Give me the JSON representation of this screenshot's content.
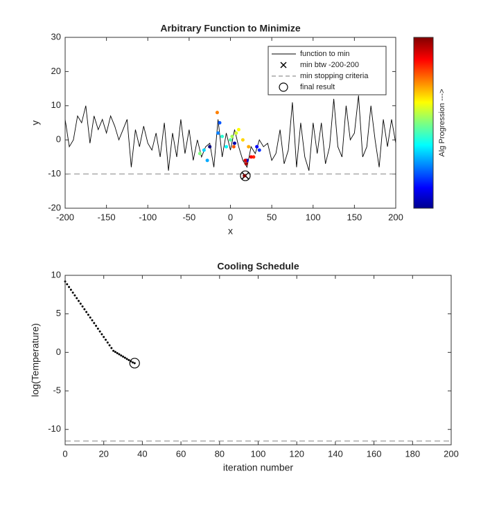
{
  "chart_data": [
    {
      "type": "line",
      "title": "Arbitrary Function to Minimize",
      "xlabel": "x",
      "ylabel": "y",
      "xlim": [
        -200,
        200
      ],
      "ylim": [
        -20,
        30
      ],
      "xticks": [
        -200,
        -150,
        -100,
        -50,
        0,
        50,
        100,
        150,
        200
      ],
      "yticks": [
        -20,
        -10,
        0,
        10,
        20,
        30
      ],
      "legend": "upper right",
      "series": [
        {
          "name": "function to min",
          "color": "#000000",
          "style": "solid",
          "x": [
            -200,
            -195,
            -190,
            -185,
            -180,
            -175,
            -170,
            -165,
            -160,
            -155,
            -150,
            -145,
            -140,
            -135,
            -130,
            -125,
            -120,
            -115,
            -110,
            -105,
            -100,
            -95,
            -90,
            -85,
            -80,
            -75,
            -70,
            -65,
            -60,
            -55,
            -50,
            -45,
            -40,
            -35,
            -30,
            -25,
            -20,
            -15,
            -10,
            -5,
            0,
            5,
            10,
            15,
            20,
            25,
            30,
            35,
            40,
            45,
            50,
            55,
            60,
            65,
            70,
            75,
            80,
            85,
            90,
            95,
            100,
            105,
            110,
            115,
            120,
            125,
            130,
            135,
            140,
            145,
            150,
            155,
            160,
            165,
            170,
            175,
            180,
            185,
            190,
            195,
            200
          ],
          "values": [
            6,
            -2,
            0,
            7,
            5,
            10,
            -1,
            7,
            3,
            6,
            2,
            7,
            4,
            0,
            3,
            6,
            -8,
            3,
            -2,
            4,
            -1,
            -3,
            2,
            -5,
            5,
            -9,
            2,
            -5,
            6,
            -4,
            3,
            -6,
            0,
            -5,
            -2,
            -1,
            -8,
            6,
            -5,
            2,
            -3,
            3,
            -2,
            -6,
            -8,
            -2,
            -4,
            0,
            -2,
            -1,
            -6,
            -4,
            3,
            -7,
            -3,
            11,
            -8,
            5,
            -5,
            -9,
            5,
            -4,
            5,
            -7,
            -2,
            12,
            -2,
            -5,
            10,
            0,
            2,
            13,
            -5,
            -2,
            10,
            0,
            -8,
            6,
            -2,
            6,
            -1
          ]
        },
        {
          "name": "min btw -200-200",
          "color": "#000000",
          "marker": "x",
          "x": [
            18
          ],
          "values": [
            -10.5
          ]
        },
        {
          "name": "min stopping criteria",
          "color": "#777777",
          "style": "dashed",
          "x": [
            -200,
            200
          ],
          "values": [
            -10,
            -10
          ]
        },
        {
          "name": "final result",
          "color": "#000000",
          "marker": "o",
          "x": [
            18
          ],
          "values": [
            -10.5
          ]
        }
      ],
      "progression": {
        "colormap": "jet",
        "x": [
          -25,
          5,
          20,
          32,
          35,
          -13,
          -15,
          -28,
          -32,
          -5,
          -10,
          0,
          -37,
          2,
          7,
          10,
          15,
          22,
          -16,
          4,
          28,
          25,
          18,
          19,
          17
        ],
        "values": [
          -2,
          -1,
          -6,
          -2,
          -3,
          5,
          2,
          -6,
          -3,
          -2,
          1,
          0,
          -4,
          1,
          2,
          3,
          0,
          -2,
          8,
          -2,
          -5,
          -5,
          -6,
          -7,
          -10.5
        ]
      },
      "colorbar_label": "Alg Progression --->"
    },
    {
      "type": "line",
      "title": "Cooling Schedule",
      "xlabel": "iteration number",
      "ylabel": "log(Temperature)",
      "xlim": [
        0,
        200
      ],
      "ylim": [
        -12,
        10
      ],
      "xticks": [
        0,
        20,
        40,
        60,
        80,
        100,
        120,
        140,
        160,
        180,
        200
      ],
      "yticks": [
        -10,
        -5,
        0,
        5,
        10
      ],
      "series": [
        {
          "color": "#000000",
          "marker": "dot",
          "x": [
            0,
            1,
            2,
            3,
            4,
            5,
            6,
            7,
            8,
            9,
            10,
            11,
            12,
            13,
            14,
            15,
            16,
            17,
            18,
            19,
            20,
            21,
            22,
            23,
            24,
            25,
            26,
            27,
            28,
            29,
            30,
            31,
            32,
            33,
            34,
            35,
            36
          ],
          "values": [
            9.2,
            8.84,
            8.48,
            8.12,
            7.76,
            7.4,
            7.04,
            6.68,
            6.32,
            5.96,
            5.6,
            5.24,
            4.88,
            4.52,
            4.16,
            3.8,
            3.44,
            3.08,
            2.72,
            2.36,
            2.0,
            1.64,
            1.28,
            0.92,
            0.56,
            0.2,
            0.05,
            -0.1,
            -0.25,
            -0.4,
            -0.55,
            -0.7,
            -0.85,
            -1.0,
            -1.15,
            -1.3,
            -1.4
          ]
        },
        {
          "color": "#777777",
          "style": "dashed",
          "x": [
            0,
            200
          ],
          "values": [
            -11.5,
            -11.5
          ]
        },
        {
          "color": "#000000",
          "marker": "o",
          "x": [
            36
          ],
          "values": [
            -1.4
          ]
        }
      ]
    }
  ]
}
